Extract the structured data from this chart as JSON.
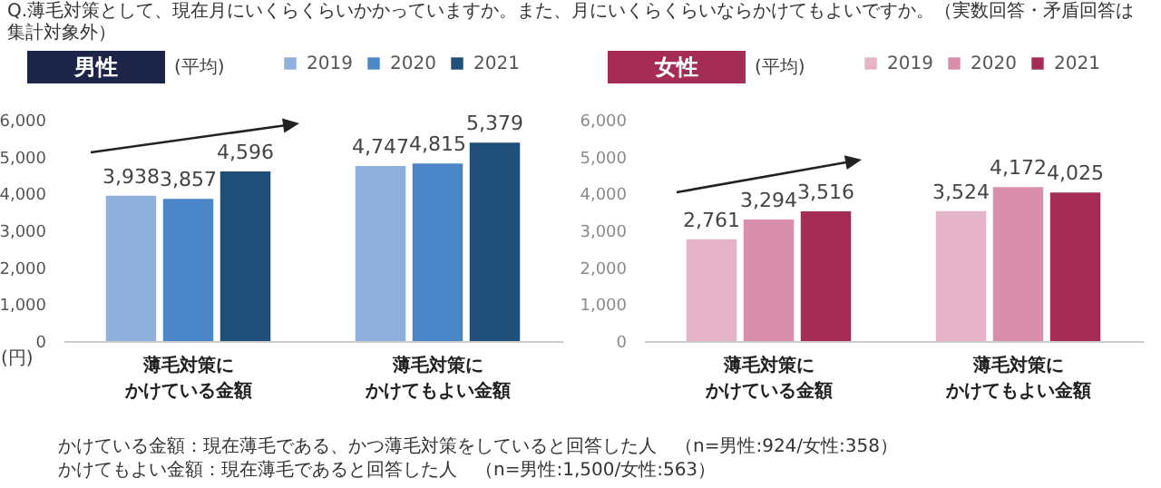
{
  "chart_data": [
    {
      "type": "bar",
      "title": "男性",
      "subtitle": "(平均)",
      "ylabel": "(円)",
      "categories": [
        "薄毛対策にかけている金額",
        "薄毛対策にかけてもよい金額"
      ],
      "series": [
        {
          "name": "2019",
          "color": "#8eb0da",
          "values": [
            3938,
            4747
          ],
          "value_labels": [
            "3,938",
            "4,747"
          ]
        },
        {
          "name": "2020",
          "color": "#4a86c8",
          "values": [
            3857,
            4815
          ],
          "value_labels": [
            "3,857",
            "4,815"
          ]
        },
        {
          "name": "2021",
          "color": "#1f4e79",
          "values": [
            4596,
            5379
          ],
          "value_labels": [
            "4,596",
            "5,379"
          ]
        }
      ],
      "ylim": [
        0,
        6000
      ],
      "yticks": [
        {
          "value": 0,
          "label": "0"
        },
        {
          "value": 1000,
          "label": "1,000"
        },
        {
          "value": 2000,
          "label": "2,000"
        },
        {
          "value": 3000,
          "label": "3,000"
        },
        {
          "value": 4000,
          "label": "4,000"
        },
        {
          "value": 5000,
          "label": "5,000"
        },
        {
          "value": 6000,
          "label": "6,000"
        }
      ],
      "legend": "top right",
      "grid": false,
      "annotations": [
        "Q.薄毛対策として、現在月にいくらくらいかかっていますか。また、月にいくらくらいならかけてもよいですか。（実数回答・矛盾回答は集計対象外）",
        "かけている金額：現在薄毛である、かつ薄毛対策をしていると回答した人　（n=男性:924/女性:358）",
        "かけてもよい金額：現在薄毛であると回答した人　（n=男性:1,500/女性:563）"
      ]
    },
    {
      "type": "bar",
      "title": "女性",
      "subtitle": "(平均)",
      "categories": [
        "薄毛対策にかけている金額",
        "薄毛対策にかけてもよい金額"
      ],
      "series": [
        {
          "name": "2019",
          "color": "#e6b4c8",
          "values": [
            2761,
            3524
          ],
          "value_labels": [
            "2,761",
            "3,524"
          ]
        },
        {
          "name": "2020",
          "color": "#d98fab",
          "values": [
            3294,
            4172
          ],
          "value_labels": [
            "3,294",
            "4,172"
          ]
        },
        {
          "name": "2021",
          "color": "#a52c55",
          "values": [
            3516,
            4025
          ],
          "value_labels": [
            "3,516",
            "4,025"
          ]
        }
      ],
      "ylim": [
        0,
        6000
      ],
      "yticks": [
        {
          "value": 0,
          "label": "0"
        },
        {
          "value": 1000,
          "label": "1,000"
        },
        {
          "value": 2000,
          "label": "2,000"
        },
        {
          "value": 3000,
          "label": "3,000"
        },
        {
          "value": 4000,
          "label": "4,000"
        },
        {
          "value": 5000,
          "label": "5,000"
        },
        {
          "value": 6000,
          "label": "6,000"
        }
      ],
      "legend": "top right",
      "grid": false
    }
  ]
}
